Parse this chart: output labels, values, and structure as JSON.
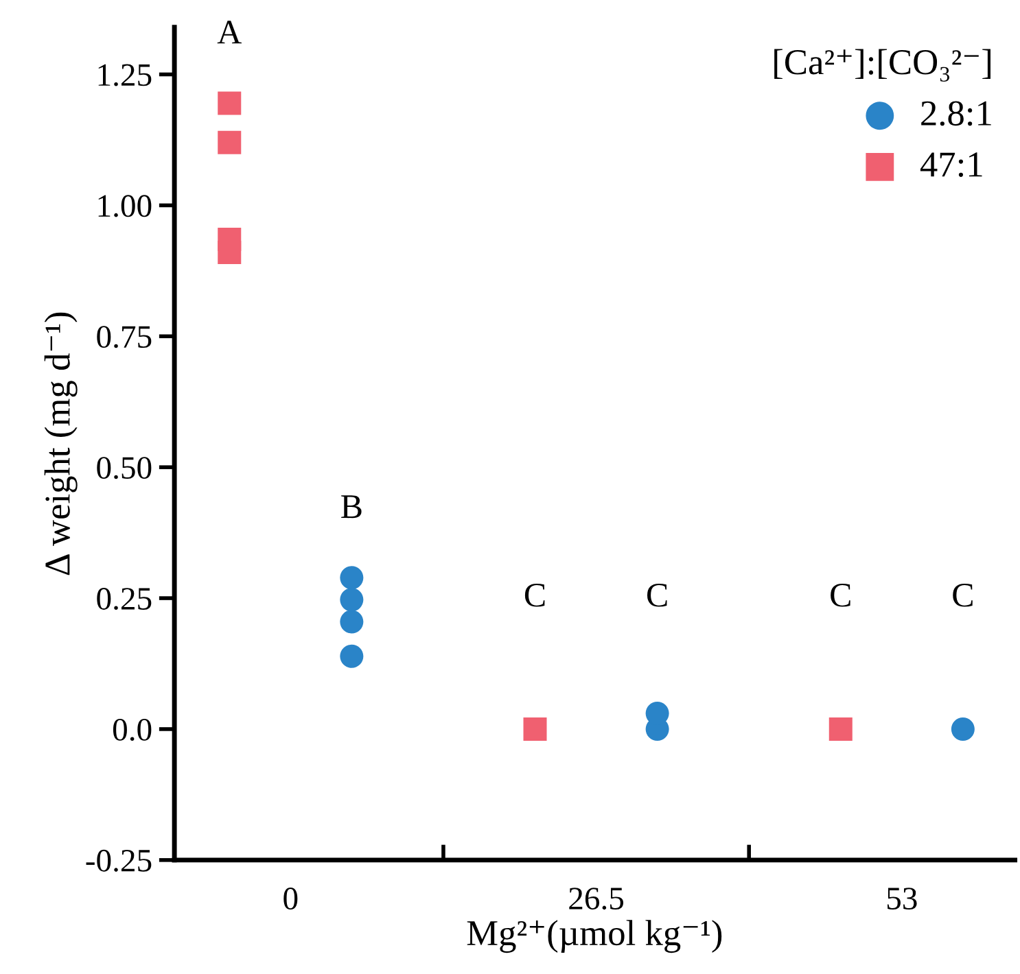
{
  "chart_data": {
    "type": "scatter",
    "xlabel": "Mg²⁺(µmol kg⁻¹)",
    "ylabel": "Δ weight (mg d⁻¹)",
    "legend_title": "[Ca²⁺]:[CO₃²⁻]",
    "legend": "top right",
    "grid": false,
    "categories": [
      "0",
      "26.5",
      "53"
    ],
    "ylim": [
      -0.25,
      1.34
    ],
    "yticks": [
      -0.25,
      {
        "value": 0,
        "label": "0.0"
      },
      0.25,
      {
        "value": 0.5,
        "label": "0.50"
      },
      0.75,
      {
        "value": 1,
        "label": "1.00"
      },
      1.25
    ],
    "series": [
      {
        "name": "2.8:1",
        "color": "#2a84c8",
        "marker": "circle",
        "x": [
          "0",
          "0",
          "0",
          "0",
          "26.5",
          "26.5",
          "53"
        ],
        "values": [
          0.205,
          0.289,
          0.247,
          0.139,
          0.0,
          0.03,
          0.0
        ]
      },
      {
        "name": "47:1",
        "color": "#f06070",
        "marker": "square",
        "x": [
          "0",
          "0",
          "0",
          "0",
          "26.5",
          "53"
        ],
        "values": [
          1.195,
          1.12,
          0.935,
          0.91,
          0.0,
          0.0
        ]
      }
    ],
    "annotations": [
      "A",
      "B",
      "C",
      "C",
      "C",
      "C"
    ]
  }
}
